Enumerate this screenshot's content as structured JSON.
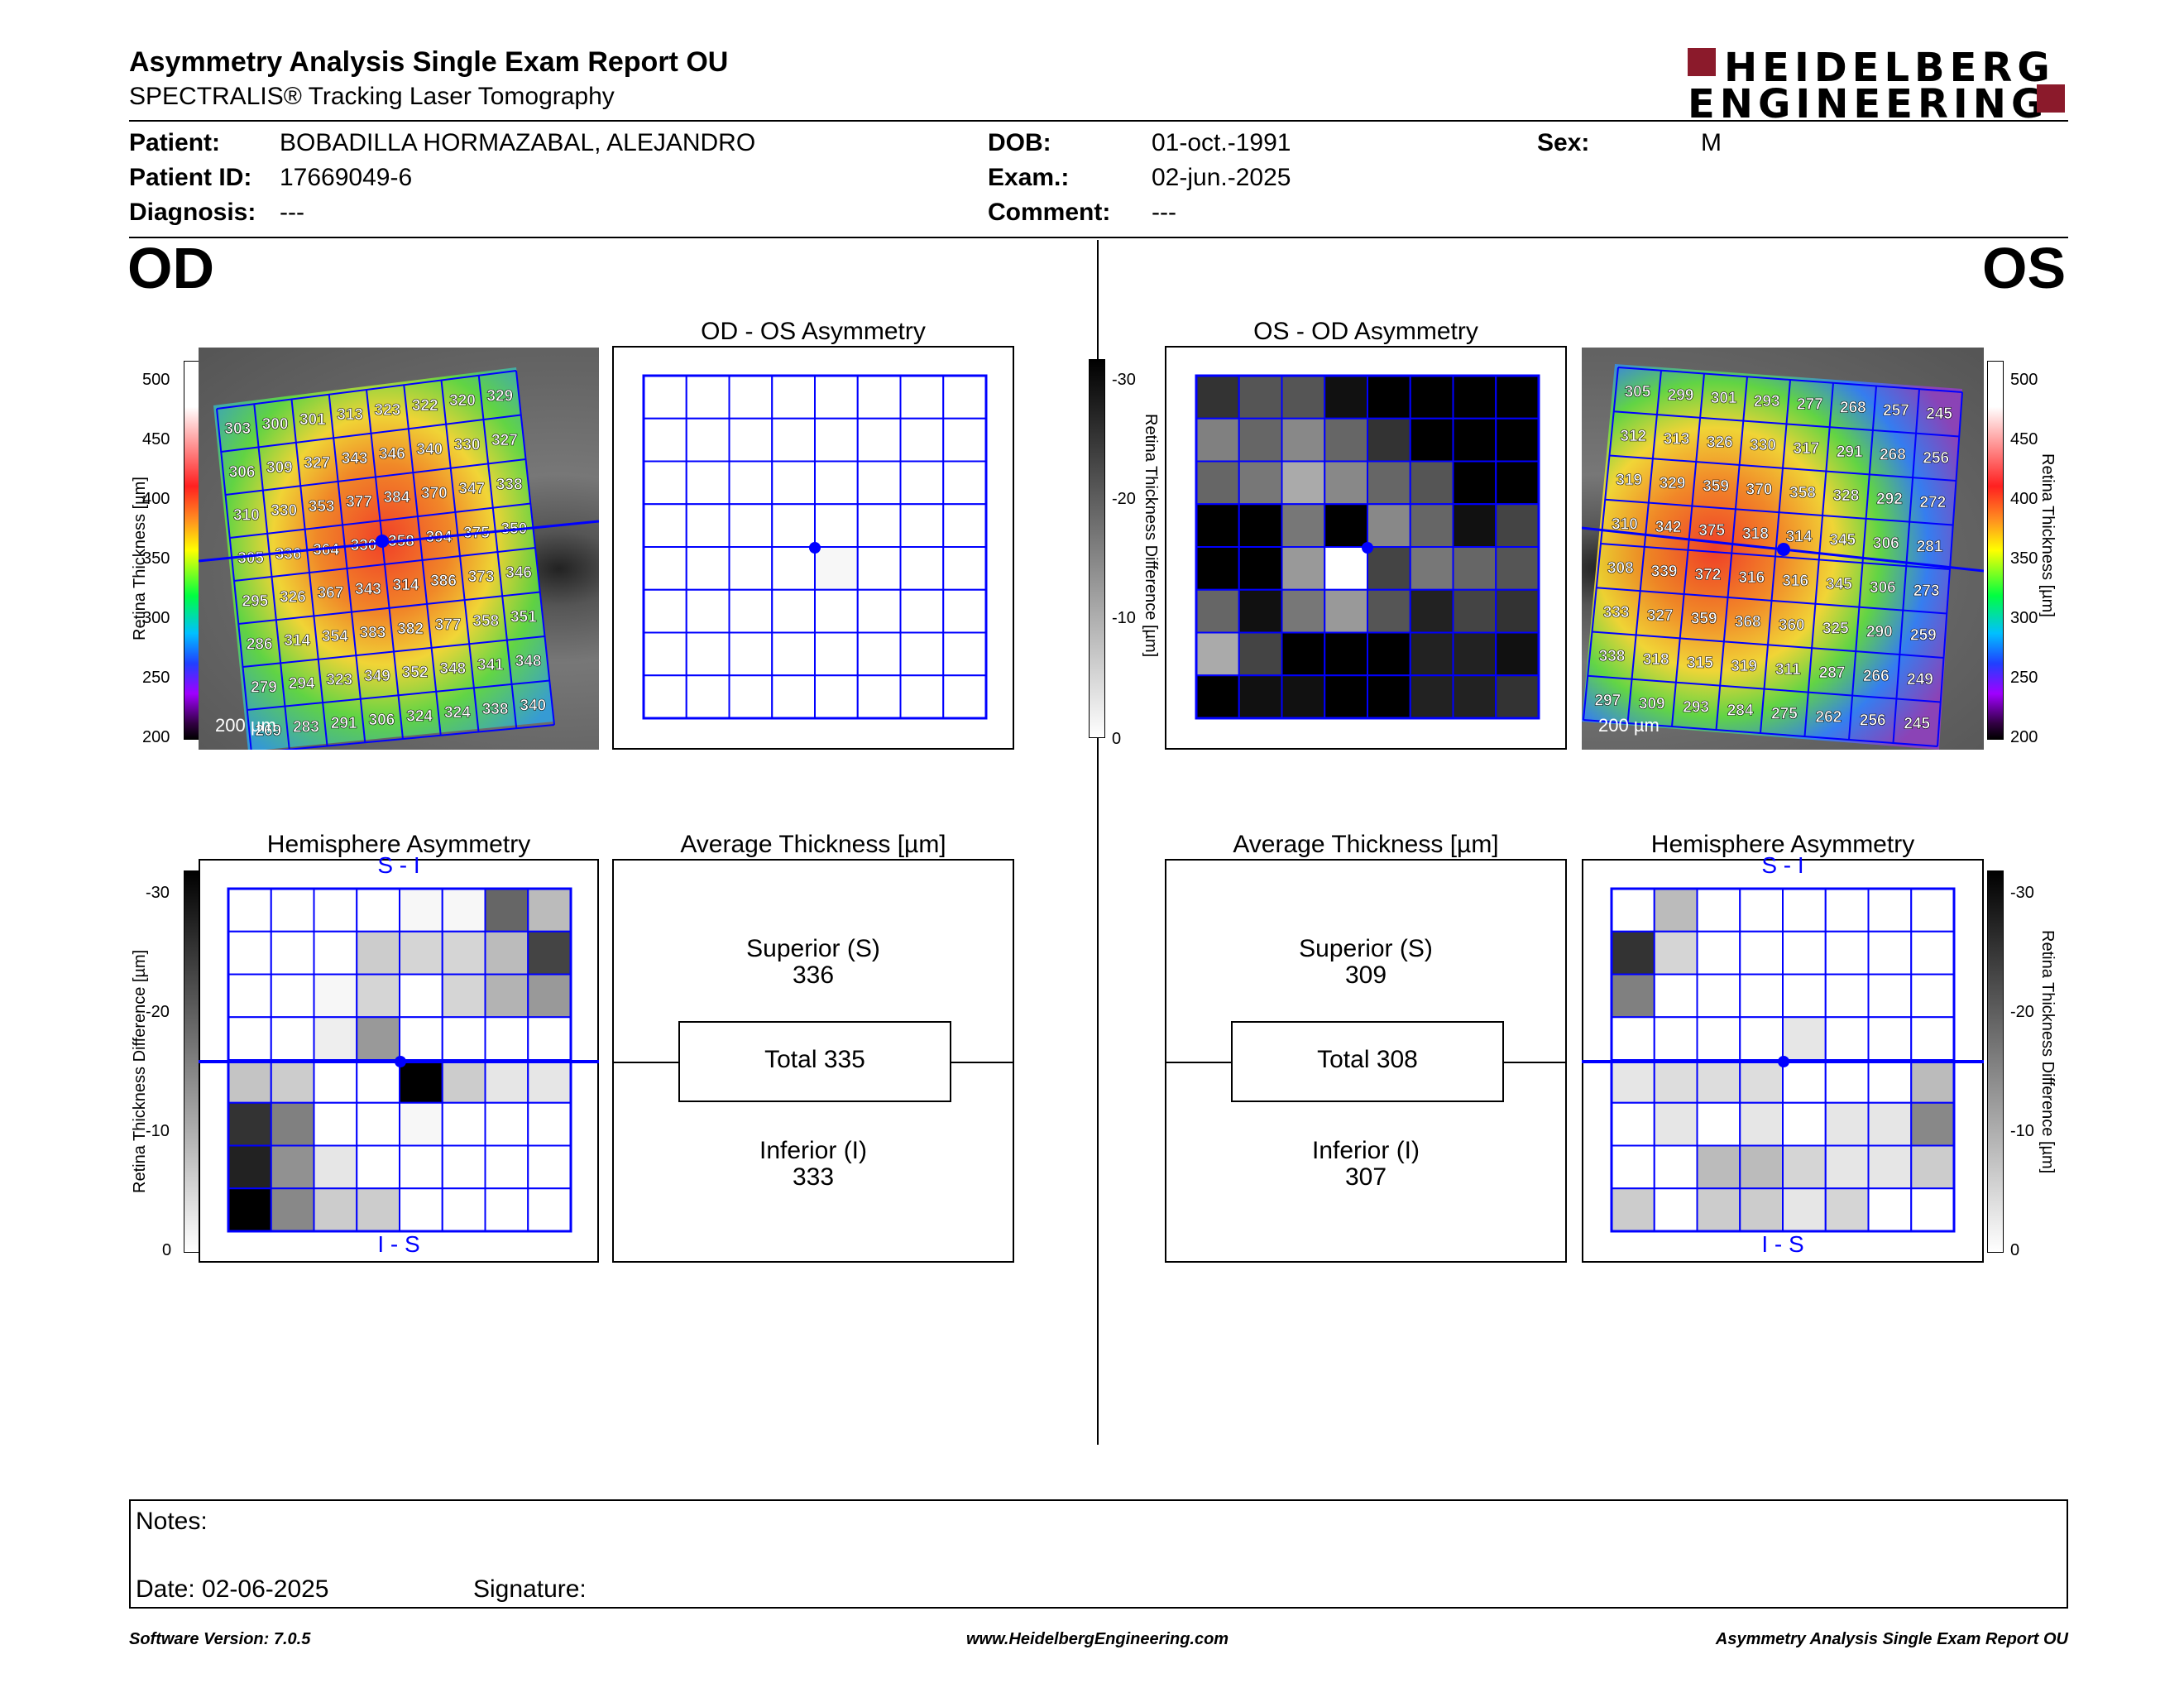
{
  "header": {
    "title": "Asymmetry Analysis Single Exam Report OU",
    "subtitle": "SPECTRALIS® Tracking Laser Tomography",
    "logo_line1": "HEIDELBERG",
    "logo_line2": "ENGINEERING",
    "logo_color": "#8b1a2b"
  },
  "patient": {
    "patient_label": "Patient:",
    "patient_value": "BOBADILLA HORMAZABAL, ALEJANDRO",
    "id_label": "Patient ID:",
    "id_value": "17669049-6",
    "diag_label": "Diagnosis:",
    "diag_value": "---",
    "dob_label": "DOB:",
    "dob_value": "01-oct.-1991",
    "exam_label": "Exam.:",
    "exam_value": "02-jun.-2025",
    "comment_label": "Comment:",
    "comment_value": "---",
    "sex_label": "Sex:",
    "sex_value": "M"
  },
  "od": {
    "eye_label": "OD",
    "thickness_title": "",
    "asym_title": "OD - OS Asymmetry",
    "hemi_title": "Hemisphere Asymmetry",
    "avg_title": "Average Thickness [µm]",
    "scale_label": "200 µm",
    "thickness_axis_label": "Retina  Thickness [µm]",
    "thickness_ticks": [
      "500",
      "450",
      "400",
      "350",
      "300",
      "250",
      "200"
    ],
    "diff_axis_label": "Retina Thickness Difference [µm]",
    "diff_ticks": [
      "-30",
      "-20",
      "-10",
      "0"
    ],
    "hemi_top": "S - I",
    "hemi_bottom": "I - S",
    "superior_label": "Superior (S)",
    "superior_value": "336",
    "total_label": "Total 335",
    "inferior_label": "Inferior (I)",
    "inferior_value": "333",
    "grid": [
      [
        "303",
        "300",
        "301",
        "313",
        "323",
        "322",
        "320",
        "329"
      ],
      [
        "306",
        "309",
        "327",
        "343",
        "346",
        "340",
        "330",
        "327"
      ],
      [
        "310",
        "330",
        "353",
        "377",
        "384",
        "370",
        "347",
        "338"
      ],
      [
        "305",
        "336",
        "364",
        "330",
        "358",
        "394",
        "375",
        "350"
      ],
      [
        "295",
        "326",
        "367",
        "343",
        "314",
        "386",
        "373",
        "346"
      ],
      [
        "286",
        "314",
        "354",
        "383",
        "382",
        "377",
        "358",
        "351"
      ],
      [
        "279",
        "294",
        "323",
        "349",
        "352",
        "348",
        "341",
        "348"
      ],
      [
        "269",
        "283",
        "291",
        "306",
        "324",
        "324",
        "338",
        "340"
      ]
    ],
    "asym_grid": [
      [
        0,
        0,
        0,
        0,
        0,
        0,
        0,
        0
      ],
      [
        0,
        0,
        0,
        0,
        0,
        0,
        0,
        0
      ],
      [
        0,
        0,
        0,
        0,
        0,
        0,
        0,
        0
      ],
      [
        0,
        0,
        0,
        0,
        0,
        0,
        0,
        0
      ],
      [
        0,
        0,
        0,
        0,
        1,
        0,
        0,
        0
      ],
      [
        0,
        0,
        0,
        0,
        0,
        0,
        0,
        0
      ],
      [
        0,
        0,
        0,
        0,
        0,
        0,
        0,
        0
      ],
      [
        0,
        0,
        0,
        0,
        0,
        0,
        0,
        0
      ]
    ],
    "hemi_grid": [
      [
        0,
        0,
        0,
        0,
        1,
        1,
        18,
        8
      ],
      [
        0,
        0,
        0,
        6,
        5,
        5,
        8,
        22
      ],
      [
        0,
        0,
        1,
        5,
        0,
        5,
        9,
        12
      ],
      [
        0,
        0,
        2,
        12,
        0,
        0,
        0,
        0
      ],
      [
        7,
        6,
        0,
        0,
        30,
        6,
        3,
        3
      ],
      [
        24,
        15,
        0,
        0,
        1,
        0,
        0,
        0
      ],
      [
        26,
        13,
        3,
        0,
        0,
        0,
        0,
        0
      ],
      [
        30,
        14,
        6,
        6,
        0,
        0,
        0,
        0
      ]
    ]
  },
  "os": {
    "eye_label": "OS",
    "asym_title": "OS - OD Asymmetry",
    "hemi_title": "Hemisphere Asymmetry",
    "avg_title": "Average Thickness [µm]",
    "scale_label": "200 µm",
    "thickness_axis_label": "Retina  Thickness [µm]",
    "thickness_ticks": [
      "500",
      "450",
      "400",
      "350",
      "300",
      "250",
      "200"
    ],
    "diff_axis_label": "Retina Thickness Difference [µm]",
    "diff_ticks": [
      "-30",
      "-20",
      "-10",
      "0"
    ],
    "hemi_top": "S - I",
    "hemi_bottom": "I - S",
    "superior_label": "Superior (S)",
    "superior_value": "309",
    "total_label": "Total 308",
    "inferior_label": "Inferior (I)",
    "inferior_value": "307",
    "grid": [
      [
        "305",
        "299",
        "301",
        "293",
        "277",
        "268",
        "257",
        "245"
      ],
      [
        "312",
        "313",
        "326",
        "330",
        "317",
        "291",
        "268",
        "256"
      ],
      [
        "319",
        "329",
        "359",
        "370",
        "358",
        "328",
        "292",
        "272"
      ],
      [
        "310",
        "342",
        "375",
        "318",
        "314",
        "345",
        "306",
        "281"
      ],
      [
        "308",
        "339",
        "372",
        "316",
        "316",
        "345",
        "306",
        "273"
      ],
      [
        "333",
        "327",
        "359",
        "368",
        "360",
        "325",
        "290",
        "259"
      ],
      [
        "338",
        "318",
        "315",
        "319",
        "311",
        "287",
        "266",
        "249"
      ],
      [
        "297",
        "309",
        "293",
        "284",
        "275",
        "262",
        "256",
        "245"
      ]
    ],
    "asym_grid": [
      [
        24,
        20,
        20,
        28,
        30,
        30,
        30,
        30
      ],
      [
        15,
        18,
        14,
        18,
        24,
        30,
        30,
        30
      ],
      [
        18,
        16,
        10,
        14,
        18,
        20,
        30,
        30
      ],
      [
        30,
        30,
        16,
        30,
        14,
        18,
        28,
        22
      ],
      [
        30,
        30,
        12,
        0,
        22,
        16,
        18,
        20
      ],
      [
        18,
        28,
        16,
        12,
        20,
        26,
        22,
        24
      ],
      [
        10,
        22,
        30,
        30,
        30,
        26,
        26,
        28
      ],
      [
        30,
        28,
        28,
        30,
        30,
        26,
        26,
        24
      ]
    ],
    "hemi_grid": [
      [
        0,
        8,
        0,
        0,
        0,
        0,
        0,
        0
      ],
      [
        24,
        5,
        0,
        0,
        0,
        0,
        0,
        0
      ],
      [
        15,
        0,
        0,
        0,
        0,
        0,
        0,
        0
      ],
      [
        0,
        0,
        0,
        0,
        3,
        0,
        0,
        0
      ],
      [
        3,
        4,
        4,
        4,
        0,
        0,
        0,
        8
      ],
      [
        0,
        3,
        0,
        3,
        0,
        3,
        3,
        14
      ],
      [
        0,
        0,
        8,
        8,
        5,
        3,
        3,
        6
      ],
      [
        6,
        0,
        6,
        6,
        3,
        5,
        0,
        0
      ]
    ]
  },
  "notes": {
    "notes_label": "Notes:",
    "date_label": "Date: 02-06-2025",
    "signature_label": "Signature:"
  },
  "footer": {
    "software": "Software Version: 7.0.5",
    "website": "www.HeidelbergEngineering.com",
    "report": "Asymmetry Analysis Single Exam Report OU"
  }
}
